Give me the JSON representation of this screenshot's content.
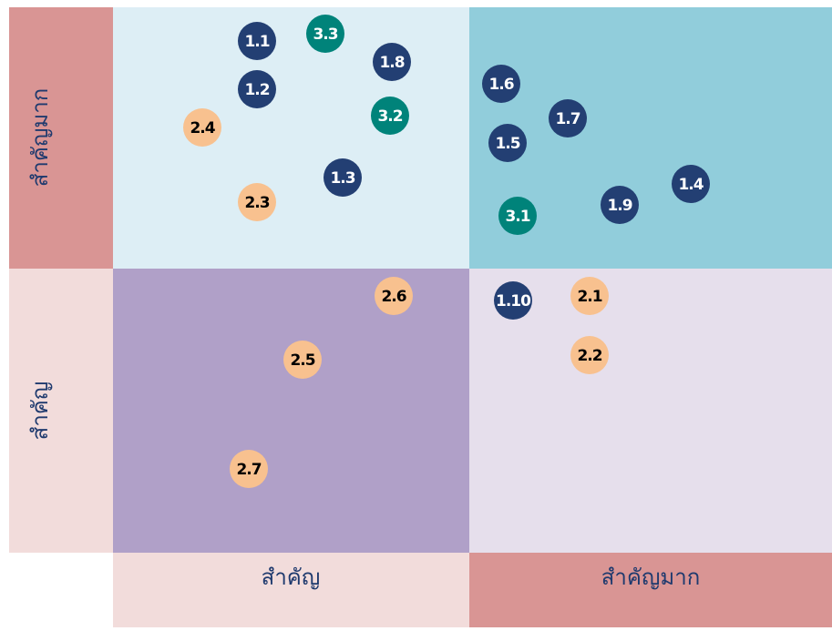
{
  "y_labels": [
    "สำคัญมาก",
    "สำคัญ"
  ],
  "x_labels": [
    "สำคัญ",
    "สำคัญมาก"
  ],
  "nodes": [
    {
      "label": "1.1",
      "color": "#233f73"
    },
    {
      "label": "3.3",
      "color": "#00837a"
    },
    {
      "label": "1.8",
      "color": "#233f73"
    },
    {
      "label": "1.2",
      "color": "#233f73"
    },
    {
      "label": "3.2",
      "color": "#00837a"
    },
    {
      "label": "2.4",
      "color": "#f8c18f"
    },
    {
      "label": "1.3",
      "color": "#233f73"
    },
    {
      "label": "2.3",
      "color": "#f8c18f"
    },
    {
      "label": "1.6",
      "color": "#233f73"
    },
    {
      "label": "1.7",
      "color": "#233f73"
    },
    {
      "label": "1.5",
      "color": "#233f73"
    },
    {
      "label": "1.4",
      "color": "#233f73"
    },
    {
      "label": "1.9",
      "color": "#233f73"
    },
    {
      "label": "3.1",
      "color": "#00837a"
    },
    {
      "label": "1.10",
      "color": "#233f73"
    },
    {
      "label": "2.1",
      "color": "#f8c18f"
    },
    {
      "label": "2.2",
      "color": "#f8c18f"
    },
    {
      "label": "2.6",
      "color": "#f8c18f"
    },
    {
      "label": "2.5",
      "color": "#f8c18f"
    },
    {
      "label": "2.7",
      "color": "#f8c18f"
    }
  ]
}
